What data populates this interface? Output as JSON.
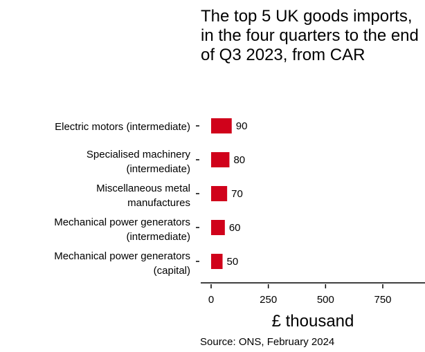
{
  "title": "The top 5 UK goods imports, in the four quarters to the end of Q3 2023, from CAR",
  "source": "Source: ONS, February 2024",
  "chart_data": {
    "type": "bar",
    "orientation": "horizontal",
    "title": "The top 5 UK goods imports, in the four quarters to the end of Q3 2023, from CAR",
    "xlabel": "£ thousand",
    "ylabel": "",
    "categories": [
      [
        "Electric motors (intermediate)"
      ],
      [
        "Specialised machinery",
        "(intermediate)"
      ],
      [
        "Miscellaneous metal",
        "manufactures"
      ],
      [
        "Mechanical power generators",
        "(intermediate)"
      ],
      [
        "Mechanical power generators",
        "(capital)"
      ]
    ],
    "values": [
      90,
      80,
      70,
      60,
      50
    ],
    "data_labels": [
      "90",
      "80",
      "70",
      "60",
      "50"
    ],
    "xticks": [
      0,
      250,
      500,
      750
    ],
    "xtick_labels": [
      "0",
      "250",
      "500",
      "750"
    ],
    "xlim": [
      0,
      900
    ],
    "grid": false,
    "bar_color": "#d0021b"
  }
}
